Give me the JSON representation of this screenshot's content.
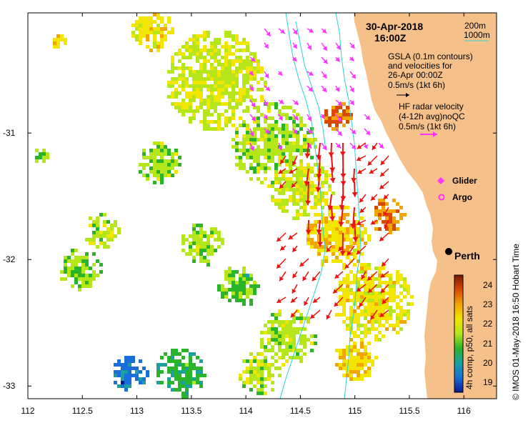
{
  "header": {
    "date": "30-Apr-2018",
    "time": "16:00Z"
  },
  "depth_contours": {
    "label_200": "200m",
    "label_1000": "1000m",
    "line_color": "#2ad4d4"
  },
  "gsla_note": {
    "line1": "GSLA (0.1m contours)",
    "line2": "and velocities for",
    "line3": "26-Apr 00:00Z",
    "line4": "0.5m/s (1kt 6h)"
  },
  "hf_note": {
    "line1": "HF radar velocity",
    "line2": "(4-12h avg)noQC",
    "line3": "0.5m/s (1kt 6h)",
    "arrow_color": "#ff33ff"
  },
  "markers": {
    "glider": "Glider",
    "argo": "Argo",
    "glider_color": "#ff33ff",
    "argo_color": "#ff33ff"
  },
  "city": {
    "name": "Perth",
    "lon": 115.86,
    "lat": -31.95
  },
  "colorbar": {
    "label": "4h comp, p50, all sats",
    "ticks": [
      "24",
      "23",
      "22",
      "21",
      "20",
      "19"
    ],
    "min": 18.5,
    "max": 24.5,
    "stops": [
      "#7a1a00",
      "#d94a00",
      "#f2a400",
      "#f2e600",
      "#b4e61a",
      "#2ab42a",
      "#1aa0a0",
      "#1a6ed9",
      "#0a1a8c"
    ]
  },
  "credit": "© IMOS 01-May-2018 16:50 Hobart Time",
  "axes": {
    "x_ticks": [
      "112",
      "112.5",
      "113",
      "113.5",
      "114",
      "114.5",
      "115",
      "115.5",
      "116"
    ],
    "x_values": [
      112,
      112.5,
      113,
      113.5,
      114,
      114.5,
      115,
      115.5,
      116
    ],
    "y_ticks": [
      "-31",
      "-32",
      "-33"
    ],
    "y_values": [
      -31,
      -32,
      -33
    ],
    "lon_range": [
      112,
      116.3
    ],
    "lat_range": [
      -33.1,
      -30.05
    ]
  },
  "colors": {
    "land": "#f5c08a",
    "radar_arrow": "#ee1111",
    "gsla_arrow": "#000000"
  }
}
